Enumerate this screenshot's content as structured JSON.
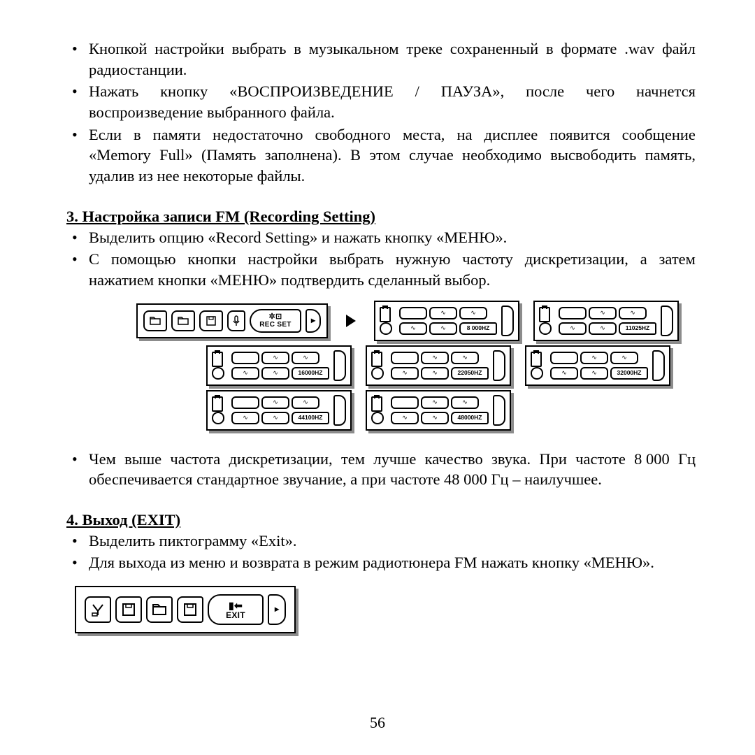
{
  "bullets_top": [
    "Кнопкой настройки выбрать в музыкальном треке сохраненный в формате .wav файл радиостанции.",
    "Нажать кнопку «ВОСПРОИЗВЕДЕНИЕ / ПАУЗА», после чего начнется воспроизведение выбранного файла.",
    "Если в памяти недостаточно свободного места, на дисплее появится сообщение «Memory Full» (Память заполнена). В этом случае необходимо высвободить память, удалив из нее некоторые файлы."
  ],
  "bullets_top_j": {
    "b1_l1": [
      "Кнопкой",
      "настройки",
      "выбрать",
      "в",
      "музыкальном",
      "треке",
      "сохраненный",
      "в",
      "формате",
      ".wav",
      "файл"
    ],
    "b1_l2": "радиостанции.",
    "b2_l1": [
      "Нажать",
      "кнопку",
      "«ВОСПРОИЗВЕДЕНИЕ",
      "/",
      "ПАУЗА»,",
      "после",
      "чего",
      "начнется"
    ],
    "b2_l2": "воспроизведение выбранного файла.",
    "b3_l1": [
      "Если",
      "в",
      "памяти",
      "недостаточно",
      "свободного",
      "места,",
      "на",
      "дисплее",
      "появится",
      "сообщение"
    ],
    "b3_l2": [
      "«Memory",
      "Full»",
      "(Память",
      "заполнена).",
      "В",
      "этом",
      "случае",
      "необходимо",
      "высвободить",
      "память,"
    ],
    "b3_l3": "удалив из нее некоторые файлы."
  },
  "section3": {
    "title": "3. Настройка записи FM (Recording Setting)",
    "bullets": [
      "Выделить опцию «Record Setting» и нажать кнопку «МЕНЮ».",
      "С помощью кнопки настройки выбрать нужную частоту дискретизации, а затем нажатием кнопки «МЕНЮ» подтвердить сделанный выбор."
    ],
    "b2_l1": [
      "С",
      "помощью",
      "кнопки",
      "настройки",
      "выбрать",
      "нужную",
      "частоту",
      "дискретизации,",
      "а",
      "затем"
    ],
    "b2_l2": "нажатием кнопки «МЕНЮ» подтвердить сделанный выбор.",
    "note_l1": [
      "Чем",
      "выше",
      "частота",
      "дискретизации,",
      "тем",
      "лучше",
      "качество",
      "звука.",
      "При",
      "частоте",
      "8 000",
      "Гц"
    ],
    "note_l2": "обеспечивается стандартное звучание, а при частоте 48 000 Гц – наилучшее."
  },
  "section4": {
    "title": "4. Выход (EXIT)",
    "bullets": [
      "Выделить пиктограмму «Exit».",
      "Для выхода из меню и возврата в режим радиотюнера FM нажать кнопку «МЕНЮ»."
    ]
  },
  "lcd": {
    "rec_set": "REC SET",
    "exit": "EXIT",
    "hz": [
      "8 000HZ",
      "11025HZ",
      "16000HZ",
      "22050HZ",
      "32000HZ",
      "44100HZ",
      "48000HZ"
    ]
  },
  "page_number": "56",
  "colors": {
    "text": "#000000",
    "bg": "#ffffff",
    "shadow": "#8c8c8c"
  }
}
